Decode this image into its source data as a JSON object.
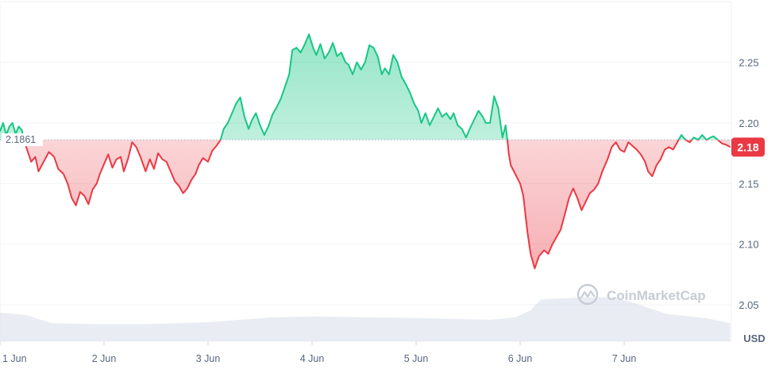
{
  "chart_data": {
    "type": "line",
    "title": "",
    "xlabel": "",
    "ylabel": "",
    "unit_label": "USD",
    "watermark": "CoinMarketCap",
    "baseline_value": 2.1861,
    "baseline_label": "2.1861",
    "current_value": 2.18,
    "current_label": "2.18",
    "ylim": [
      2.02,
      2.3
    ],
    "y_ticks": [
      {
        "value": 2.05,
        "label": "2.05"
      },
      {
        "value": 2.1,
        "label": "2.10"
      },
      {
        "value": 2.15,
        "label": "2.15"
      },
      {
        "value": 2.2,
        "label": "2.20"
      },
      {
        "value": 2.25,
        "label": "2.25"
      }
    ],
    "xlim": [
      0,
      7.03
    ],
    "x_ticks": [
      {
        "value": 0,
        "label": "1 Jun"
      },
      {
        "value": 1,
        "label": "2 Jun"
      },
      {
        "value": 2,
        "label": "3 Jun"
      },
      {
        "value": 3,
        "label": "4 Jun"
      },
      {
        "value": 4,
        "label": "5 Jun"
      },
      {
        "value": 5,
        "label": "6 Jun"
      },
      {
        "value": 6,
        "label": "7 Jun"
      }
    ],
    "grid": true,
    "colors": {
      "up": "#16c784",
      "down": "#ea3943",
      "grid": "#eff2f5",
      "axis_text": "#58667e",
      "volume": "#cfd6e4",
      "watermark": "#c7ccd5"
    },
    "series": [
      {
        "values": [
          [
            0.0,
            2.193
          ],
          [
            0.03,
            2.2
          ],
          [
            0.06,
            2.19
          ],
          [
            0.09,
            2.197
          ],
          [
            0.12,
            2.2
          ],
          [
            0.15,
            2.191
          ],
          [
            0.18,
            2.197
          ],
          [
            0.21,
            2.194
          ],
          [
            0.23,
            2.186
          ],
          [
            0.26,
            2.178
          ],
          [
            0.3,
            2.168
          ],
          [
            0.34,
            2.172
          ],
          [
            0.37,
            2.16
          ],
          [
            0.42,
            2.168
          ],
          [
            0.47,
            2.176
          ],
          [
            0.52,
            2.172
          ],
          [
            0.56,
            2.162
          ],
          [
            0.61,
            2.158
          ],
          [
            0.65,
            2.15
          ],
          [
            0.69,
            2.138
          ],
          [
            0.73,
            2.132
          ],
          [
            0.77,
            2.143
          ],
          [
            0.81,
            2.14
          ],
          [
            0.85,
            2.133
          ],
          [
            0.89,
            2.145
          ],
          [
            0.93,
            2.15
          ],
          [
            0.96,
            2.158
          ],
          [
            1.0,
            2.166
          ],
          [
            1.04,
            2.174
          ],
          [
            1.08,
            2.163
          ],
          [
            1.12,
            2.17
          ],
          [
            1.16,
            2.172
          ],
          [
            1.19,
            2.16
          ],
          [
            1.23,
            2.17
          ],
          [
            1.27,
            2.184
          ],
          [
            1.31,
            2.18
          ],
          [
            1.35,
            2.172
          ],
          [
            1.4,
            2.16
          ],
          [
            1.44,
            2.17
          ],
          [
            1.48,
            2.162
          ],
          [
            1.52,
            2.175
          ],
          [
            1.56,
            2.17
          ],
          [
            1.6,
            2.168
          ],
          [
            1.64,
            2.16
          ],
          [
            1.68,
            2.152
          ],
          [
            1.72,
            2.148
          ],
          [
            1.76,
            2.142
          ],
          [
            1.8,
            2.146
          ],
          [
            1.84,
            2.153
          ],
          [
            1.88,
            2.158
          ],
          [
            1.91,
            2.165
          ],
          [
            1.95,
            2.171
          ],
          [
            2.0,
            2.168
          ],
          [
            2.04,
            2.177
          ],
          [
            2.08,
            2.181
          ],
          [
            2.12,
            2.186
          ],
          [
            2.15,
            2.195
          ],
          [
            2.19,
            2.2
          ],
          [
            2.23,
            2.208
          ],
          [
            2.27,
            2.216
          ],
          [
            2.31,
            2.221
          ],
          [
            2.35,
            2.205
          ],
          [
            2.39,
            2.195
          ],
          [
            2.42,
            2.202
          ],
          [
            2.46,
            2.208
          ],
          [
            2.5,
            2.198
          ],
          [
            2.54,
            2.19
          ],
          [
            2.58,
            2.197
          ],
          [
            2.62,
            2.207
          ],
          [
            2.66,
            2.213
          ],
          [
            2.7,
            2.22
          ],
          [
            2.74,
            2.23
          ],
          [
            2.78,
            2.24
          ],
          [
            2.81,
            2.26
          ],
          [
            2.85,
            2.262
          ],
          [
            2.89,
            2.258
          ],
          [
            2.93,
            2.265
          ],
          [
            2.97,
            2.273
          ],
          [
            3.01,
            2.262
          ],
          [
            3.04,
            2.256
          ],
          [
            3.08,
            2.265
          ],
          [
            3.12,
            2.253
          ],
          [
            3.16,
            2.258
          ],
          [
            3.2,
            2.266
          ],
          [
            3.24,
            2.255
          ],
          [
            3.28,
            2.258
          ],
          [
            3.32,
            2.25
          ],
          [
            3.35,
            2.248
          ],
          [
            3.39,
            2.24
          ],
          [
            3.43,
            2.25
          ],
          [
            3.47,
            2.244
          ],
          [
            3.51,
            2.25
          ],
          [
            3.55,
            2.264
          ],
          [
            3.59,
            2.262
          ],
          [
            3.63,
            2.255
          ],
          [
            3.67,
            2.24
          ],
          [
            3.7,
            2.245
          ],
          [
            3.74,
            2.24
          ],
          [
            3.78,
            2.256
          ],
          [
            3.82,
            2.25
          ],
          [
            3.86,
            2.238
          ],
          [
            3.9,
            2.232
          ],
          [
            3.94,
            2.225
          ],
          [
            3.98,
            2.216
          ],
          [
            4.02,
            2.21
          ],
          [
            4.05,
            2.2
          ],
          [
            4.09,
            2.208
          ],
          [
            4.13,
            2.198
          ],
          [
            4.17,
            2.205
          ],
          [
            4.21,
            2.212
          ],
          [
            4.25,
            2.205
          ],
          [
            4.29,
            2.208
          ],
          [
            4.33,
            2.203
          ],
          [
            4.36,
            2.208
          ],
          [
            4.4,
            2.198
          ],
          [
            4.44,
            2.195
          ],
          [
            4.48,
            2.188
          ],
          [
            4.52,
            2.196
          ],
          [
            4.56,
            2.203
          ],
          [
            4.6,
            2.21
          ],
          [
            4.64,
            2.205
          ],
          [
            4.67,
            2.2
          ],
          [
            4.71,
            2.2
          ],
          [
            4.75,
            2.222
          ],
          [
            4.79,
            2.212
          ],
          [
            4.83,
            2.188
          ],
          [
            4.86,
            2.198
          ],
          [
            4.88,
            2.184
          ],
          [
            4.89,
            2.175
          ],
          [
            4.91,
            2.165
          ],
          [
            4.94,
            2.16
          ],
          [
            5.0,
            2.15
          ],
          [
            5.03,
            2.14
          ],
          [
            5.05,
            2.125
          ],
          [
            5.07,
            2.11
          ],
          [
            5.1,
            2.092
          ],
          [
            5.14,
            2.08
          ],
          [
            5.18,
            2.09
          ],
          [
            5.23,
            2.095
          ],
          [
            5.27,
            2.092
          ],
          [
            5.31,
            2.1
          ],
          [
            5.35,
            2.106
          ],
          [
            5.39,
            2.112
          ],
          [
            5.43,
            2.125
          ],
          [
            5.47,
            2.138
          ],
          [
            5.51,
            2.146
          ],
          [
            5.55,
            2.138
          ],
          [
            5.59,
            2.128
          ],
          [
            5.63,
            2.135
          ],
          [
            5.67,
            2.142
          ],
          [
            5.71,
            2.145
          ],
          [
            5.75,
            2.15
          ],
          [
            5.79,
            2.16
          ],
          [
            5.84,
            2.17
          ],
          [
            5.88,
            2.18
          ],
          [
            5.92,
            2.184
          ],
          [
            5.96,
            2.178
          ],
          [
            6.0,
            2.176
          ],
          [
            6.04,
            2.184
          ],
          [
            6.08,
            2.181
          ],
          [
            6.12,
            2.178
          ],
          [
            6.16,
            2.174
          ],
          [
            6.2,
            2.168
          ],
          [
            6.23,
            2.16
          ],
          [
            6.27,
            2.156
          ],
          [
            6.31,
            2.165
          ],
          [
            6.35,
            2.17
          ],
          [
            6.39,
            2.178
          ],
          [
            6.43,
            2.18
          ],
          [
            6.47,
            2.178
          ],
          [
            6.51,
            2.184
          ],
          [
            6.55,
            2.19
          ],
          [
            6.59,
            2.186
          ],
          [
            6.63,
            2.184
          ],
          [
            6.67,
            2.188
          ],
          [
            6.71,
            2.186
          ],
          [
            6.75,
            2.19
          ],
          [
            6.79,
            2.186
          ],
          [
            6.83,
            2.188
          ],
          [
            6.86,
            2.189
          ],
          [
            6.9,
            2.186
          ],
          [
            6.94,
            2.183
          ],
          [
            6.98,
            2.182
          ],
          [
            7.02,
            2.18
          ]
        ]
      }
    ],
    "volume": [
      [
        0.0,
        0.6
      ],
      [
        0.25,
        0.55
      ],
      [
        0.5,
        0.38
      ],
      [
        0.9,
        0.36
      ],
      [
        1.4,
        0.36
      ],
      [
        2.0,
        0.4
      ],
      [
        2.6,
        0.5
      ],
      [
        3.0,
        0.52
      ],
      [
        3.6,
        0.5
      ],
      [
        4.2,
        0.48
      ],
      [
        4.7,
        0.45
      ],
      [
        4.95,
        0.5
      ],
      [
        5.1,
        0.65
      ],
      [
        5.2,
        0.88
      ],
      [
        5.6,
        0.92
      ],
      [
        5.9,
        0.92
      ],
      [
        6.1,
        0.8
      ],
      [
        6.4,
        0.58
      ],
      [
        6.8,
        0.48
      ],
      [
        7.02,
        0.38
      ]
    ]
  }
}
